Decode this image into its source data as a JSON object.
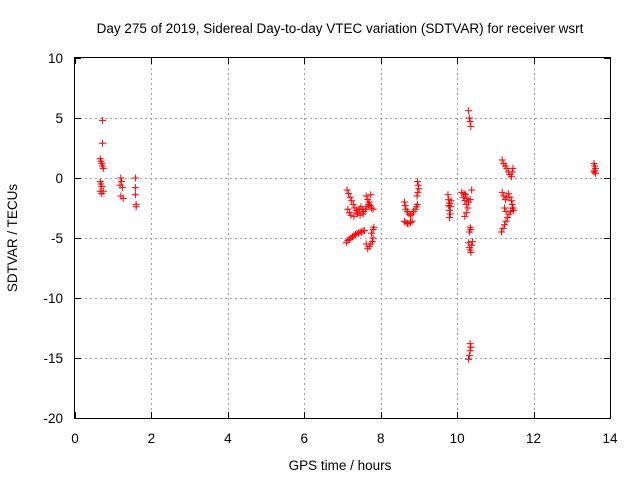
{
  "chart_data": {
    "type": "scatter",
    "title": "Day 275 of 2019, Sidereal Day-to-day VTEC variation (SDTVAR) for receiver wsrt",
    "xlabel": "GPS time / hours",
    "ylabel": "SDTVAR / TECUs",
    "xlim": [
      0,
      14
    ],
    "ylim": [
      -20,
      10
    ],
    "xticks": [
      "0",
      "2",
      "4",
      "6",
      "8",
      "10",
      "12",
      "14"
    ],
    "yticks": [
      "10",
      "5",
      "0",
      "-5",
      "-10",
      "-15",
      "-20"
    ],
    "grid": true,
    "marker": "+",
    "marker_color": "#ff0000",
    "series": [
      {
        "name": "SDTVAR",
        "points": [
          [
            0.72,
            4.8
          ],
          [
            0.72,
            2.9
          ],
          [
            0.66,
            1.6
          ],
          [
            0.68,
            1.4
          ],
          [
            0.7,
            1.2
          ],
          [
            0.72,
            1.0
          ],
          [
            0.74,
            0.8
          ],
          [
            0.66,
            -0.3
          ],
          [
            0.68,
            -0.5
          ],
          [
            0.7,
            -0.7
          ],
          [
            0.66,
            -1.1
          ],
          [
            0.7,
            -1.3
          ],
          [
            0.74,
            -1.1
          ],
          [
            1.2,
            0.0
          ],
          [
            1.22,
            -0.3
          ],
          [
            1.18,
            -0.6
          ],
          [
            1.24,
            -0.8
          ],
          [
            1.2,
            -1.5
          ],
          [
            1.26,
            -1.7
          ],
          [
            1.58,
            0.0
          ],
          [
            1.58,
            -0.8
          ],
          [
            1.58,
            -1.4
          ],
          [
            1.6,
            -2.2
          ],
          [
            1.6,
            -2.4
          ],
          [
            7.12,
            -1.0
          ],
          [
            7.16,
            -1.3
          ],
          [
            7.2,
            -1.6
          ],
          [
            7.24,
            -1.9
          ],
          [
            7.28,
            -2.2
          ],
          [
            7.32,
            -2.5
          ],
          [
            7.36,
            -2.7
          ],
          [
            7.4,
            -2.9
          ],
          [
            7.44,
            -2.6
          ],
          [
            7.48,
            -2.4
          ],
          [
            7.52,
            -2.6
          ],
          [
            7.56,
            -2.8
          ],
          [
            7.6,
            -2.6
          ],
          [
            7.64,
            -2.4
          ],
          [
            7.68,
            -2.2
          ],
          [
            7.72,
            -2.3
          ],
          [
            7.76,
            -2.5
          ],
          [
            7.8,
            -2.6
          ],
          [
            7.14,
            -2.6
          ],
          [
            7.18,
            -2.9
          ],
          [
            7.22,
            -3.1
          ],
          [
            7.3,
            -3.2
          ],
          [
            7.38,
            -3.0
          ],
          [
            7.46,
            -3.1
          ],
          [
            7.54,
            -3.0
          ],
          [
            7.62,
            -1.5
          ],
          [
            7.66,
            -1.8
          ],
          [
            7.7,
            -2.0
          ],
          [
            7.74,
            -1.4
          ],
          [
            7.1,
            -5.4
          ],
          [
            7.14,
            -5.2
          ],
          [
            7.18,
            -5.1
          ],
          [
            7.22,
            -5.0
          ],
          [
            7.26,
            -4.9
          ],
          [
            7.3,
            -4.8
          ],
          [
            7.34,
            -4.7
          ],
          [
            7.38,
            -4.6
          ],
          [
            7.42,
            -4.6
          ],
          [
            7.46,
            -4.5
          ],
          [
            7.5,
            -4.5
          ],
          [
            7.54,
            -4.4
          ],
          [
            7.58,
            -4.4
          ],
          [
            7.62,
            -5.5
          ],
          [
            7.66,
            -5.9
          ],
          [
            7.7,
            -5.7
          ],
          [
            7.74,
            -5.5
          ],
          [
            7.78,
            -5.3
          ],
          [
            7.8,
            -5.0
          ],
          [
            7.76,
            -4.6
          ],
          [
            7.8,
            -4.3
          ],
          [
            7.82,
            -4.1
          ],
          [
            8.62,
            -2.0
          ],
          [
            8.64,
            -2.3
          ],
          [
            8.66,
            -2.6
          ],
          [
            8.7,
            -2.8
          ],
          [
            8.74,
            -3.0
          ],
          [
            8.78,
            -3.1
          ],
          [
            8.82,
            -3.0
          ],
          [
            8.86,
            -2.8
          ],
          [
            8.9,
            -2.6
          ],
          [
            8.94,
            -2.4
          ],
          [
            8.96,
            -2.2
          ],
          [
            8.62,
            -3.6
          ],
          [
            8.66,
            -3.7
          ],
          [
            8.7,
            -3.8
          ],
          [
            8.74,
            -3.8
          ],
          [
            8.78,
            -3.7
          ],
          [
            8.82,
            -3.6
          ],
          [
            8.96,
            -0.3
          ],
          [
            8.98,
            -0.6
          ],
          [
            9.0,
            -0.9
          ],
          [
            8.97,
            -1.2
          ],
          [
            8.95,
            -1.5
          ],
          [
            9.76,
            -1.4
          ],
          [
            9.78,
            -1.8
          ],
          [
            9.8,
            -2.1
          ],
          [
            9.82,
            -2.4
          ],
          [
            9.8,
            -2.7
          ],
          [
            9.82,
            -3.0
          ],
          [
            9.8,
            -3.3
          ],
          [
            9.78,
            -2.3
          ],
          [
            9.84,
            -1.9
          ],
          [
            10.12,
            -1.2
          ],
          [
            10.16,
            -1.6
          ],
          [
            10.2,
            -1.9
          ],
          [
            10.24,
            -2.2
          ],
          [
            10.28,
            -2.5
          ],
          [
            10.24,
            -2.9
          ],
          [
            10.2,
            -3.2
          ],
          [
            10.18,
            -1.3
          ],
          [
            10.22,
            -1.4
          ],
          [
            10.26,
            -1.7
          ],
          [
            10.3,
            -2.0
          ],
          [
            10.34,
            -1.8
          ],
          [
            10.38,
            -1.0
          ],
          [
            10.3,
            5.6
          ],
          [
            10.32,
            5.0
          ],
          [
            10.34,
            4.7
          ],
          [
            10.36,
            4.3
          ],
          [
            10.34,
            -4.1
          ],
          [
            10.36,
            -4.3
          ],
          [
            10.32,
            -4.5
          ],
          [
            10.3,
            -5.4
          ],
          [
            10.32,
            -5.8
          ],
          [
            10.34,
            -6.0
          ],
          [
            10.36,
            -6.2
          ],
          [
            10.38,
            -5.6
          ],
          [
            10.4,
            -5.3
          ],
          [
            10.34,
            -13.8
          ],
          [
            10.36,
            -14.1
          ],
          [
            10.34,
            -14.4
          ],
          [
            10.32,
            -14.8
          ],
          [
            10.3,
            -15.1
          ],
          [
            11.18,
            1.5
          ],
          [
            11.22,
            1.2
          ],
          [
            11.26,
            1.0
          ],
          [
            11.3,
            0.8
          ],
          [
            11.34,
            0.5
          ],
          [
            11.38,
            0.3
          ],
          [
            11.42,
            0.1
          ],
          [
            11.44,
            0.5
          ],
          [
            11.46,
            0.8
          ],
          [
            11.18,
            -1.2
          ],
          [
            11.22,
            -1.5
          ],
          [
            11.26,
            -1.8
          ],
          [
            11.3,
            -1.6
          ],
          [
            11.34,
            -1.3
          ],
          [
            11.38,
            -1.6
          ],
          [
            11.42,
            -1.9
          ],
          [
            11.44,
            -2.2
          ],
          [
            11.46,
            -2.5
          ],
          [
            11.24,
            -2.5
          ],
          [
            11.28,
            -2.8
          ],
          [
            11.16,
            -4.5
          ],
          [
            11.2,
            -4.2
          ],
          [
            11.24,
            -3.9
          ],
          [
            11.28,
            -3.6
          ],
          [
            11.32,
            -3.3
          ],
          [
            11.36,
            -3.0
          ],
          [
            11.4,
            -2.8
          ],
          [
            11.44,
            -2.5
          ],
          [
            11.48,
            -2.7
          ],
          [
            13.58,
            1.2
          ],
          [
            13.6,
            1.0
          ],
          [
            13.62,
            0.8
          ],
          [
            13.6,
            0.6
          ],
          [
            13.58,
            0.5
          ],
          [
            13.62,
            0.4
          ]
        ]
      }
    ]
  }
}
